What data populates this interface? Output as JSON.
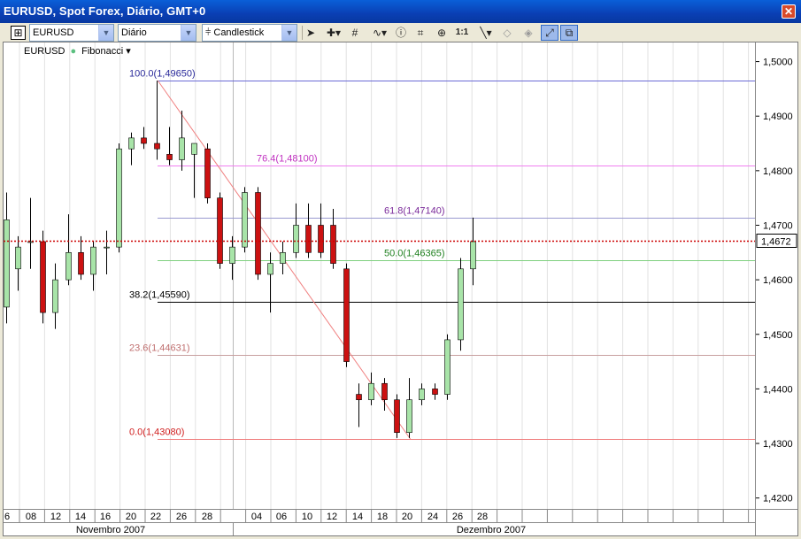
{
  "window": {
    "title": "EURUSD, Spot Forex, Diário, GMT+0",
    "close_label": "✕"
  },
  "toolbar": {
    "symbol": "EURUSD",
    "period": "Diário",
    "chart_type": "Candlestick",
    "tools": [
      "pointer-icon",
      "crosshair-icon",
      "grid-icon",
      "indicator-icon",
      "info-icon",
      "annotation-icon",
      "zoom-icon",
      "reset-zoom-icon",
      "trendline-icon",
      "eraser-icon",
      "template-icon",
      "autoscale-icon",
      "magnet-icon"
    ]
  },
  "legend": {
    "symbol": "EURUSD",
    "study": "Fibonacci"
  },
  "price_marker": "1,4672",
  "chart_data": {
    "type": "candlestick",
    "ylim": [
      1.418,
      1.5035
    ],
    "yticks": [
      "1,5000",
      "1,4900",
      "1,4800",
      "1,4700",
      "1,4600",
      "1,4500",
      "1,4400",
      "1,4300",
      "1,4200"
    ],
    "xticks": [
      "6",
      "08",
      "12",
      "14",
      "16",
      "20",
      "22",
      "26",
      "28",
      "04",
      "06",
      "10",
      "12",
      "14",
      "18",
      "20",
      "24",
      "26",
      "28"
    ],
    "months": [
      "Novembro 2007",
      "Dezembro 2007"
    ],
    "current_price": 1.4672,
    "candles": [
      {
        "o": 1.455,
        "h": 1.476,
        "l": 1.452,
        "c": 1.471
      },
      {
        "o": 1.462,
        "h": 1.468,
        "l": 1.458,
        "c": 1.466
      },
      {
        "o": 1.467,
        "h": 1.475,
        "l": 1.462,
        "c": 1.467
      },
      {
        "o": 1.467,
        "h": 1.469,
        "l": 1.452,
        "c": 1.454
      },
      {
        "o": 1.454,
        "h": 1.463,
        "l": 1.451,
        "c": 1.46
      },
      {
        "o": 1.46,
        "h": 1.472,
        "l": 1.459,
        "c": 1.465
      },
      {
        "o": 1.465,
        "h": 1.468,
        "l": 1.46,
        "c": 1.461
      },
      {
        "o": 1.461,
        "h": 1.467,
        "l": 1.458,
        "c": 1.466
      },
      {
        "o": 1.466,
        "h": 1.469,
        "l": 1.461,
        "c": 1.466
      },
      {
        "o": 1.466,
        "h": 1.485,
        "l": 1.465,
        "c": 1.484
      },
      {
        "o": 1.484,
        "h": 1.487,
        "l": 1.481,
        "c": 1.486
      },
      {
        "o": 1.486,
        "h": 1.488,
        "l": 1.484,
        "c": 1.485
      },
      {
        "o": 1.485,
        "h": 1.4965,
        "l": 1.482,
        "c": 1.484
      },
      {
        "o": 1.483,
        "h": 1.488,
        "l": 1.481,
        "c": 1.482
      },
      {
        "o": 1.482,
        "h": 1.491,
        "l": 1.48,
        "c": 1.486
      },
      {
        "o": 1.483,
        "h": 1.485,
        "l": 1.475,
        "c": 1.485
      },
      {
        "o": 1.484,
        "h": 1.485,
        "l": 1.474,
        "c": 1.475
      },
      {
        "o": 1.475,
        "h": 1.476,
        "l": 1.462,
        "c": 1.463
      },
      {
        "o": 1.463,
        "h": 1.468,
        "l": 1.46,
        "c": 1.466
      },
      {
        "o": 1.466,
        "h": 1.477,
        "l": 1.465,
        "c": 1.476
      },
      {
        "o": 1.476,
        "h": 1.477,
        "l": 1.46,
        "c": 1.461
      },
      {
        "o": 1.461,
        "h": 1.465,
        "l": 1.454,
        "c": 1.463
      },
      {
        "o": 1.463,
        "h": 1.467,
        "l": 1.461,
        "c": 1.465
      },
      {
        "o": 1.465,
        "h": 1.474,
        "l": 1.464,
        "c": 1.47
      },
      {
        "o": 1.47,
        "h": 1.474,
        "l": 1.464,
        "c": 1.465
      },
      {
        "o": 1.47,
        "h": 1.474,
        "l": 1.464,
        "c": 1.465
      },
      {
        "o": 1.47,
        "h": 1.473,
        "l": 1.462,
        "c": 1.463
      },
      {
        "o": 1.462,
        "h": 1.463,
        "l": 1.444,
        "c": 1.445
      },
      {
        "o": 1.439,
        "h": 1.441,
        "l": 1.433,
        "c": 1.438
      },
      {
        "o": 1.438,
        "h": 1.443,
        "l": 1.437,
        "c": 1.441
      },
      {
        "o": 1.441,
        "h": 1.442,
        "l": 1.436,
        "c": 1.438
      },
      {
        "o": 1.438,
        "h": 1.439,
        "l": 1.431,
        "c": 1.432
      },
      {
        "o": 1.432,
        "h": 1.442,
        "l": 1.431,
        "c": 1.438
      },
      {
        "o": 1.438,
        "h": 1.441,
        "l": 1.437,
        "c": 1.44
      },
      {
        "o": 1.44,
        "h": 1.441,
        "l": 1.438,
        "c": 1.439
      },
      {
        "o": 1.439,
        "h": 1.45,
        "l": 1.438,
        "c": 1.449
      },
      {
        "o": 1.449,
        "h": 1.464,
        "l": 1.447,
        "c": 1.462
      },
      {
        "o": 1.462,
        "h": 1.4714,
        "l": 1.459,
        "c": 1.467
      }
    ],
    "fibonacci": {
      "levels": [
        {
          "label": "100.0(1,49650)",
          "value": 1.4965,
          "color": "#6b6bd6",
          "text_color": "#2a2a9a"
        },
        {
          "label": "76.4(1,48100)",
          "value": 1.481,
          "color": "#f080f0",
          "text_color": "#c030c0"
        },
        {
          "label": "61.8(1,47140)",
          "value": 1.4714,
          "color": "#9a9ad0",
          "text_color": "#7a2a9a"
        },
        {
          "label": "50.0(1,46365)",
          "value": 1.46365,
          "color": "#80d080",
          "text_color": "#208020"
        },
        {
          "label": "38.2(1,45590)",
          "value": 1.4559,
          "color": "#000000",
          "text_color": "#000000"
        },
        {
          "label": "23.6(1,44631)",
          "value": 1.44631,
          "color": "#c8a0a0",
          "text_color": "#c07070"
        },
        {
          "label": "0.0(1,43080)",
          "value": 1.4308,
          "color": "#f08080",
          "text_color": "#d02020"
        }
      ]
    }
  }
}
